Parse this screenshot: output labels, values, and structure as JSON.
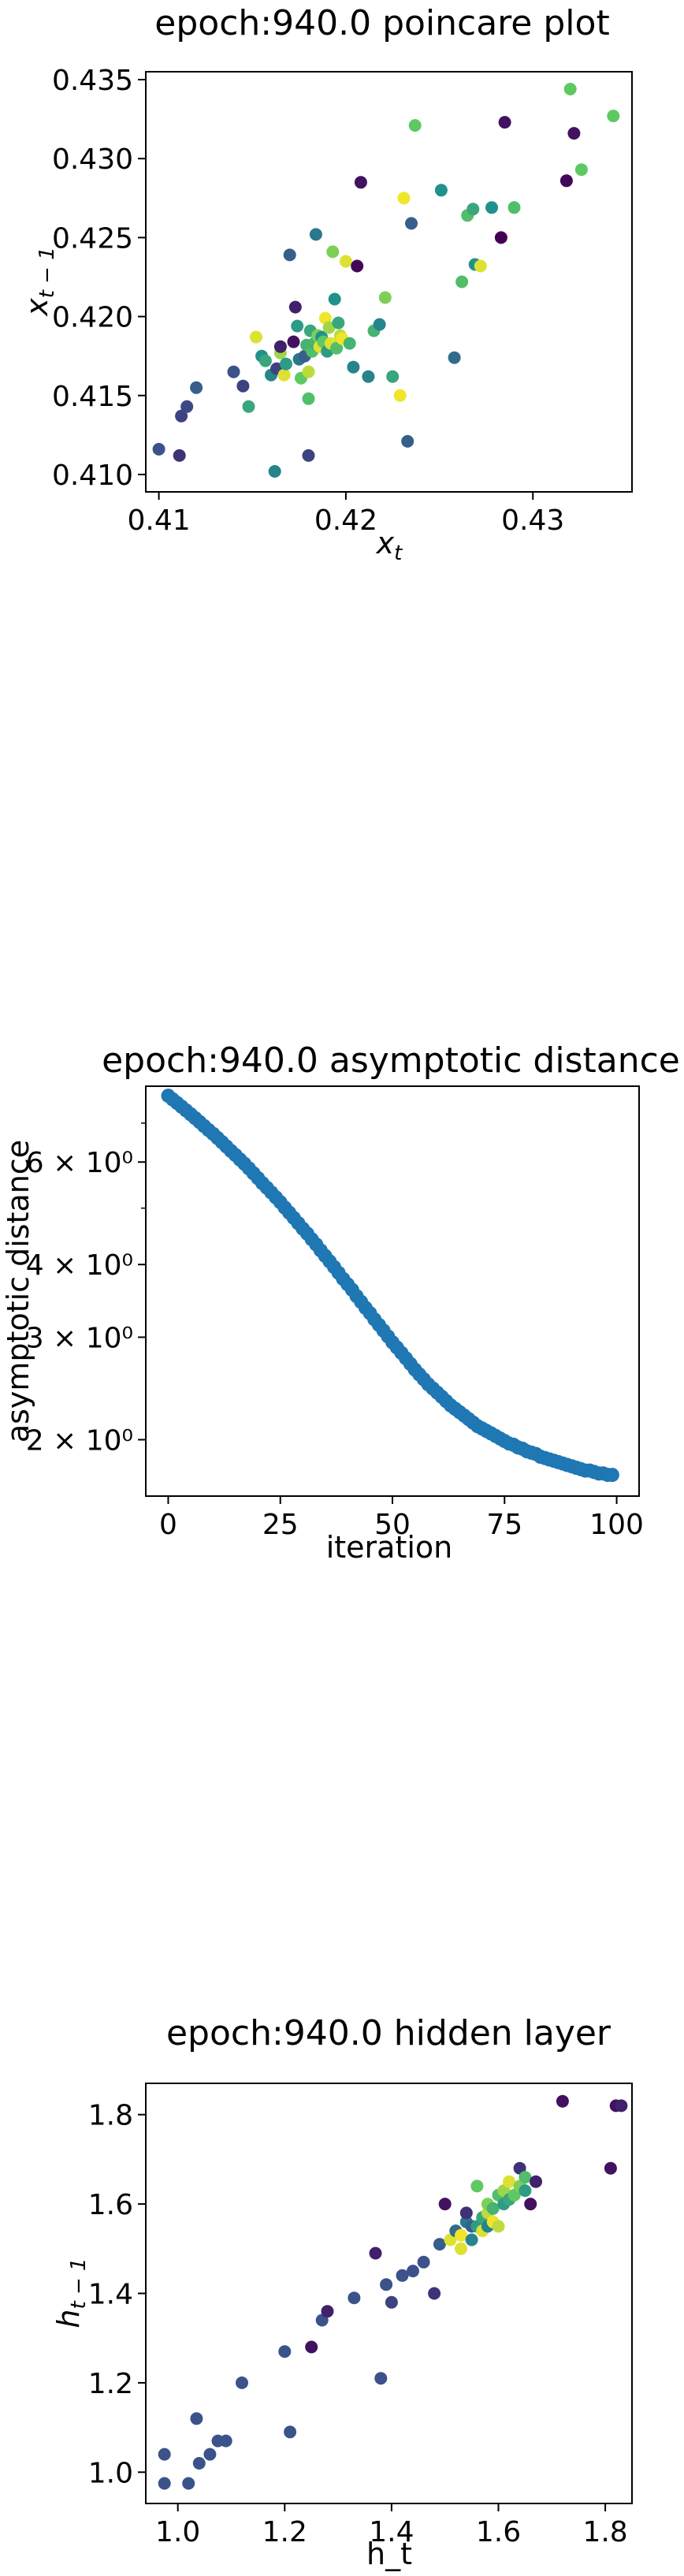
{
  "chart_data": [
    {
      "type": "scatter",
      "title": "epoch:940.0 poincare plot",
      "xlabel": "x_t",
      "ylabel": "x_{t-1}",
      "xlim": [
        0.4093,
        0.4353
      ],
      "ylim": [
        0.4089,
        0.4355
      ],
      "xticks": [
        0.41,
        0.42,
        0.43
      ],
      "xtick_labels": [
        "0.41",
        "0.42",
        "0.43"
      ],
      "yticks": [
        0.41,
        0.415,
        0.42,
        0.425,
        0.43,
        0.435
      ],
      "ytick_labels": [
        "0.410",
        "0.415",
        "0.420",
        "0.425",
        "0.430",
        "0.435"
      ],
      "grid": false,
      "colormap": "viridis",
      "points": [
        {
          "x": 0.41,
          "y": 0.4116,
          "c": 0.25
        },
        {
          "x": 0.4111,
          "y": 0.4112,
          "c": 0.15
        },
        {
          "x": 0.4112,
          "y": 0.4137,
          "c": 0.2
        },
        {
          "x": 0.4115,
          "y": 0.4143,
          "c": 0.22
        },
        {
          "x": 0.412,
          "y": 0.4155,
          "c": 0.3
        },
        {
          "x": 0.414,
          "y": 0.4165,
          "c": 0.25
        },
        {
          "x": 0.4145,
          "y": 0.4156,
          "c": 0.2
        },
        {
          "x": 0.4148,
          "y": 0.4143,
          "c": 0.6
        },
        {
          "x": 0.4152,
          "y": 0.4187,
          "c": 0.95
        },
        {
          "x": 0.4155,
          "y": 0.4175,
          "c": 0.5
        },
        {
          "x": 0.4157,
          "y": 0.4172,
          "c": 0.6
        },
        {
          "x": 0.416,
          "y": 0.4163,
          "c": 0.45
        },
        {
          "x": 0.4162,
          "y": 0.4102,
          "c": 0.45
        },
        {
          "x": 0.4163,
          "y": 0.4167,
          "c": 0.2
        },
        {
          "x": 0.4165,
          "y": 0.4177,
          "c": 0.85
        },
        {
          "x": 0.4165,
          "y": 0.4181,
          "c": 0.1
        },
        {
          "x": 0.4167,
          "y": 0.4163,
          "c": 0.95
        },
        {
          "x": 0.4168,
          "y": 0.417,
          "c": 0.55
        },
        {
          "x": 0.417,
          "y": 0.4239,
          "c": 0.3
        },
        {
          "x": 0.4172,
          "y": 0.4184,
          "c": 0.05
        },
        {
          "x": 0.4173,
          "y": 0.4206,
          "c": 0.1
        },
        {
          "x": 0.4174,
          "y": 0.4194,
          "c": 0.55
        },
        {
          "x": 0.4175,
          "y": 0.4173,
          "c": 0.4
        },
        {
          "x": 0.4176,
          "y": 0.4161,
          "c": 0.75
        },
        {
          "x": 0.4178,
          "y": 0.4175,
          "c": 0.3
        },
        {
          "x": 0.4179,
          "y": 0.4182,
          "c": 0.65
        },
        {
          "x": 0.418,
          "y": 0.4112,
          "c": 0.2
        },
        {
          "x": 0.418,
          "y": 0.4148,
          "c": 0.7
        },
        {
          "x": 0.418,
          "y": 0.4165,
          "c": 0.9
        },
        {
          "x": 0.4181,
          "y": 0.4191,
          "c": 0.6
        },
        {
          "x": 0.4182,
          "y": 0.4178,
          "c": 0.7
        },
        {
          "x": 0.4183,
          "y": 0.4183,
          "c": 0.65
        },
        {
          "x": 0.4184,
          "y": 0.4252,
          "c": 0.4
        },
        {
          "x": 0.4185,
          "y": 0.4188,
          "c": 0.8
        },
        {
          "x": 0.4186,
          "y": 0.4181,
          "c": 0.95
        },
        {
          "x": 0.4187,
          "y": 0.4187,
          "c": 0.5
        },
        {
          "x": 0.4188,
          "y": 0.4184,
          "c": 0.75
        },
        {
          "x": 0.4189,
          "y": 0.4199,
          "c": 0.98
        },
        {
          "x": 0.419,
          "y": 0.4178,
          "c": 0.55
        },
        {
          "x": 0.4191,
          "y": 0.4193,
          "c": 0.85
        },
        {
          "x": 0.4192,
          "y": 0.4183,
          "c": 0.95
        },
        {
          "x": 0.4193,
          "y": 0.4241,
          "c": 0.8
        },
        {
          "x": 0.4194,
          "y": 0.4211,
          "c": 0.5
        },
        {
          "x": 0.4195,
          "y": 0.418,
          "c": 0.7
        },
        {
          "x": 0.4196,
          "y": 0.4196,
          "c": 0.6
        },
        {
          "x": 0.4197,
          "y": 0.4188,
          "c": 0.9
        },
        {
          "x": 0.4198,
          "y": 0.4186,
          "c": 0.98
        },
        {
          "x": 0.42,
          "y": 0.4235,
          "c": 0.95
        },
        {
          "x": 0.4202,
          "y": 0.4183,
          "c": 0.65
        },
        {
          "x": 0.4204,
          "y": 0.4168,
          "c": 0.45
        },
        {
          "x": 0.4206,
          "y": 0.4232,
          "c": 0.02
        },
        {
          "x": 0.4208,
          "y": 0.4285,
          "c": 0.05
        },
        {
          "x": 0.4212,
          "y": 0.4162,
          "c": 0.45
        },
        {
          "x": 0.4215,
          "y": 0.4191,
          "c": 0.65
        },
        {
          "x": 0.4218,
          "y": 0.4195,
          "c": 0.45
        },
        {
          "x": 0.4221,
          "y": 0.4212,
          "c": 0.8
        },
        {
          "x": 0.4225,
          "y": 0.4162,
          "c": 0.6
        },
        {
          "x": 0.4229,
          "y": 0.415,
          "c": 0.98
        },
        {
          "x": 0.4231,
          "y": 0.4275,
          "c": 0.98
        },
        {
          "x": 0.4233,
          "y": 0.4121,
          "c": 0.3
        },
        {
          "x": 0.4235,
          "y": 0.4259,
          "c": 0.3
        },
        {
          "x": 0.4237,
          "y": 0.4321,
          "c": 0.75
        },
        {
          "x": 0.4251,
          "y": 0.428,
          "c": 0.5
        },
        {
          "x": 0.4258,
          "y": 0.4174,
          "c": 0.35
        },
        {
          "x": 0.4262,
          "y": 0.4222,
          "c": 0.7
        },
        {
          "x": 0.4265,
          "y": 0.4264,
          "c": 0.7
        },
        {
          "x": 0.4268,
          "y": 0.4268,
          "c": 0.6
        },
        {
          "x": 0.4269,
          "y": 0.4233,
          "c": 0.5
        },
        {
          "x": 0.4272,
          "y": 0.4232,
          "c": 0.95
        },
        {
          "x": 0.4278,
          "y": 0.4269,
          "c": 0.5
        },
        {
          "x": 0.4283,
          "y": 0.425,
          "c": 0.0
        },
        {
          "x": 0.4285,
          "y": 0.4323,
          "c": 0.05
        },
        {
          "x": 0.429,
          "y": 0.4269,
          "c": 0.7
        },
        {
          "x": 0.4318,
          "y": 0.4286,
          "c": 0.02
        },
        {
          "x": 0.432,
          "y": 0.4344,
          "c": 0.75
        },
        {
          "x": 0.4322,
          "y": 0.4316,
          "c": 0.05
        },
        {
          "x": 0.4326,
          "y": 0.4293,
          "c": 0.75
        },
        {
          "x": 0.4343,
          "y": 0.4327,
          "c": 0.75
        }
      ]
    },
    {
      "type": "scatter",
      "title": "epoch:940.0 asymptotic distance",
      "xlabel": "iteration",
      "ylabel": "asymptotic distance",
      "xlim": [
        -5,
        105
      ],
      "ylim": [
        1.6,
        8.1
      ],
      "yscale": "log",
      "xticks": [
        0,
        25,
        50,
        75,
        100
      ],
      "xtick_labels": [
        "0",
        "25",
        "50",
        "75",
        "100"
      ],
      "yticks": [
        2,
        3,
        4,
        6
      ],
      "ytick_labels": [
        "2 × 10⁰",
        "3 × 10⁰",
        "4 × 10⁰",
        "6 × 10⁰"
      ],
      "grid": false,
      "color": "#1f77b4",
      "x": [
        0,
        1,
        2,
        3,
        4,
        5,
        6,
        7,
        8,
        9,
        10,
        11,
        12,
        13,
        14,
        15,
        16,
        17,
        18,
        19,
        20,
        21,
        22,
        23,
        24,
        25,
        26,
        27,
        28,
        29,
        30,
        31,
        32,
        33,
        34,
        35,
        36,
        37,
        38,
        39,
        40,
        41,
        42,
        43,
        44,
        45,
        46,
        47,
        48,
        49,
        50,
        51,
        52,
        53,
        54,
        55,
        56,
        57,
        58,
        59,
        60,
        61,
        62,
        63,
        64,
        65,
        66,
        67,
        68,
        69,
        70,
        71,
        72,
        73,
        74,
        75,
        76,
        77,
        78,
        79,
        80,
        81,
        82,
        83,
        84,
        85,
        86,
        87,
        88,
        89,
        90,
        91,
        92,
        93,
        94,
        95,
        96,
        97,
        98,
        99
      ],
      "y": [
        7.8,
        7.69,
        7.58,
        7.47,
        7.36,
        7.25,
        7.14,
        7.03,
        6.92,
        6.81,
        6.71,
        6.6,
        6.49,
        6.38,
        6.27,
        6.17,
        6.06,
        5.96,
        5.85,
        5.74,
        5.63,
        5.52,
        5.42,
        5.32,
        5.22,
        5.12,
        5.01,
        4.91,
        4.81,
        4.71,
        4.61,
        4.52,
        4.42,
        4.33,
        4.23,
        4.14,
        4.05,
        3.96,
        3.87,
        3.78,
        3.7,
        3.62,
        3.53,
        3.45,
        3.37,
        3.3,
        3.22,
        3.15,
        3.08,
        3.01,
        2.94,
        2.88,
        2.82,
        2.76,
        2.7,
        2.64,
        2.59,
        2.54,
        2.49,
        2.45,
        2.41,
        2.37,
        2.33,
        2.29,
        2.26,
        2.23,
        2.2,
        2.17,
        2.14,
        2.11,
        2.09,
        2.07,
        2.05,
        2.03,
        2.01,
        1.99,
        1.97,
        1.96,
        1.94,
        1.93,
        1.91,
        1.9,
        1.89,
        1.87,
        1.86,
        1.85,
        1.84,
        1.83,
        1.82,
        1.81,
        1.8,
        1.79,
        1.78,
        1.77,
        1.77,
        1.76,
        1.75,
        1.75,
        1.74,
        1.74
      ]
    },
    {
      "type": "scatter",
      "title": "epoch:940.0 hidden layer",
      "xlabel": "h_t",
      "ylabel": "h_{t-1}",
      "xlim": [
        0.94,
        1.85
      ],
      "ylim": [
        0.93,
        1.87
      ],
      "xticks": [
        1.0,
        1.2,
        1.4,
        1.6,
        1.8
      ],
      "xtick_labels": [
        "1.0",
        "1.2",
        "1.4",
        "1.6",
        "1.8"
      ],
      "yticks": [
        1.0,
        1.2,
        1.4,
        1.6,
        1.8
      ],
      "ytick_labels": [
        "1.0",
        "1.2",
        "1.4",
        "1.6",
        "1.8"
      ],
      "grid": false,
      "colormap": "viridis",
      "points": [
        {
          "x": 0.975,
          "y": 0.975,
          "c": 0.25
        },
        {
          "x": 0.975,
          "y": 1.04,
          "c": 0.25
        },
        {
          "x": 1.02,
          "y": 0.975,
          "c": 0.25
        },
        {
          "x": 1.035,
          "y": 1.12,
          "c": 0.25
        },
        {
          "x": 1.04,
          "y": 1.02,
          "c": 0.25
        },
        {
          "x": 1.06,
          "y": 1.04,
          "c": 0.25
        },
        {
          "x": 1.075,
          "y": 1.07,
          "c": 0.25
        },
        {
          "x": 1.09,
          "y": 1.07,
          "c": 0.25
        },
        {
          "x": 1.12,
          "y": 1.2,
          "c": 0.25
        },
        {
          "x": 1.2,
          "y": 1.27,
          "c": 0.25
        },
        {
          "x": 1.21,
          "y": 1.09,
          "c": 0.25
        },
        {
          "x": 1.25,
          "y": 1.28,
          "c": 0.05
        },
        {
          "x": 1.27,
          "y": 1.34,
          "c": 0.25
        },
        {
          "x": 1.28,
          "y": 1.36,
          "c": 0.1
        },
        {
          "x": 1.33,
          "y": 1.39,
          "c": 0.25
        },
        {
          "x": 1.37,
          "y": 1.49,
          "c": 0.1
        },
        {
          "x": 1.38,
          "y": 1.21,
          "c": 0.25
        },
        {
          "x": 1.39,
          "y": 1.42,
          "c": 0.25
        },
        {
          "x": 1.4,
          "y": 1.38,
          "c": 0.2
        },
        {
          "x": 1.42,
          "y": 1.44,
          "c": 0.25
        },
        {
          "x": 1.44,
          "y": 1.45,
          "c": 0.25
        },
        {
          "x": 1.46,
          "y": 1.47,
          "c": 0.25
        },
        {
          "x": 1.48,
          "y": 1.4,
          "c": 0.15
        },
        {
          "x": 1.49,
          "y": 1.51,
          "c": 0.3
        },
        {
          "x": 1.5,
          "y": 1.6,
          "c": 0.05
        },
        {
          "x": 1.51,
          "y": 1.52,
          "c": 0.95
        },
        {
          "x": 1.52,
          "y": 1.54,
          "c": 0.35
        },
        {
          "x": 1.53,
          "y": 1.5,
          "c": 0.95
        },
        {
          "x": 1.53,
          "y": 1.53,
          "c": 0.98
        },
        {
          "x": 1.54,
          "y": 1.56,
          "c": 0.4
        },
        {
          "x": 1.54,
          "y": 1.58,
          "c": 0.15
        },
        {
          "x": 1.55,
          "y": 1.52,
          "c": 0.45
        },
        {
          "x": 1.55,
          "y": 1.55,
          "c": 0.3
        },
        {
          "x": 1.56,
          "y": 1.64,
          "c": 0.75
        },
        {
          "x": 1.56,
          "y": 1.55,
          "c": 0.55
        },
        {
          "x": 1.57,
          "y": 1.54,
          "c": 0.95
        },
        {
          "x": 1.57,
          "y": 1.57,
          "c": 0.6
        },
        {
          "x": 1.58,
          "y": 1.55,
          "c": 0.45
        },
        {
          "x": 1.58,
          "y": 1.58,
          "c": 0.9
        },
        {
          "x": 1.58,
          "y": 1.6,
          "c": 0.8
        },
        {
          "x": 1.59,
          "y": 1.56,
          "c": 0.98
        },
        {
          "x": 1.59,
          "y": 1.59,
          "c": 0.65
        },
        {
          "x": 1.6,
          "y": 1.55,
          "c": 0.9
        },
        {
          "x": 1.6,
          "y": 1.62,
          "c": 0.7
        },
        {
          "x": 1.61,
          "y": 1.6,
          "c": 0.55
        },
        {
          "x": 1.61,
          "y": 1.63,
          "c": 0.85
        },
        {
          "x": 1.62,
          "y": 1.61,
          "c": 0.6
        },
        {
          "x": 1.62,
          "y": 1.65,
          "c": 0.95
        },
        {
          "x": 1.63,
          "y": 1.62,
          "c": 0.75
        },
        {
          "x": 1.64,
          "y": 1.64,
          "c": 0.8
        },
        {
          "x": 1.64,
          "y": 1.68,
          "c": 0.15
        },
        {
          "x": 1.65,
          "y": 1.63,
          "c": 0.55
        },
        {
          "x": 1.65,
          "y": 1.66,
          "c": 0.7
        },
        {
          "x": 1.66,
          "y": 1.6,
          "c": 0.05
        },
        {
          "x": 1.67,
          "y": 1.65,
          "c": 0.1
        },
        {
          "x": 1.72,
          "y": 1.83,
          "c": 0.05
        },
        {
          "x": 1.81,
          "y": 1.68,
          "c": 0.05
        },
        {
          "x": 1.82,
          "y": 1.82,
          "c": 0.05
        },
        {
          "x": 1.83,
          "y": 1.82,
          "c": 0.1
        }
      ]
    }
  ]
}
